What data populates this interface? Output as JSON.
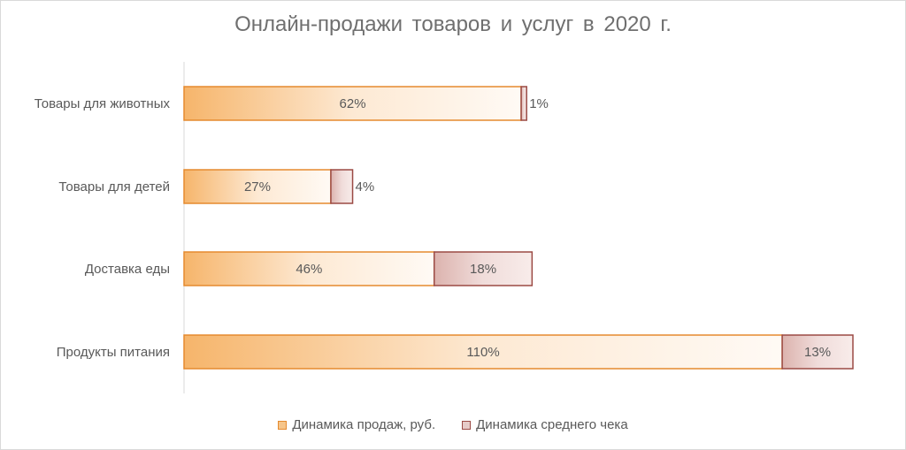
{
  "chart_data": {
    "type": "bar",
    "orientation": "horizontal",
    "stacked": true,
    "title": "Онлайн-продажи товаров и услуг в 2020 г.",
    "categories": [
      "Товары для животных",
      "Товары для детей",
      "Доставка еды",
      "Продукты питания"
    ],
    "series": [
      {
        "name": "Динамика продаж, руб.",
        "values": [
          62,
          27,
          46,
          110
        ],
        "labels": [
          "62%",
          "27%",
          "46%",
          "110%"
        ],
        "color": "#f4b26a",
        "border": "#e58a2e"
      },
      {
        "name": "Динамика среднего чека",
        "values": [
          1,
          4,
          18,
          13
        ],
        "labels": [
          "1%",
          "4%",
          "18%",
          "13%"
        ],
        "color": "#e2c3c0",
        "border": "#9b4a44"
      }
    ],
    "xlim": [
      0,
      123
    ],
    "grid": false,
    "legend_position": "bottom"
  }
}
